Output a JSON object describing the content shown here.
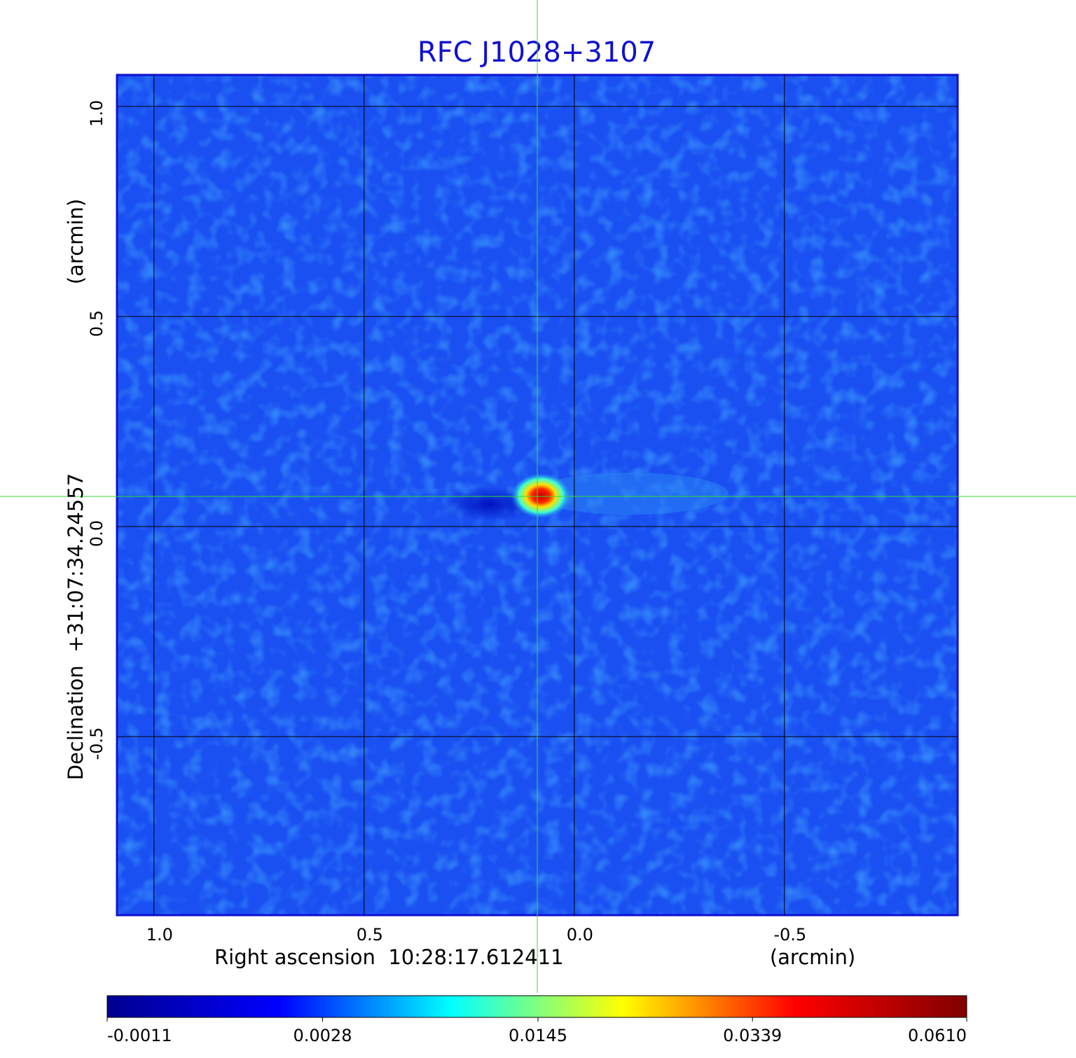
{
  "chart_data": {
    "type": "image",
    "title": "RFC J1028+3107",
    "xlabel": "Right ascension  10:28:17.612411",
    "xunit": "(arcmin)",
    "ylabel": "Declination  +31:07:34.24557",
    "yunit": "(arcmin)",
    "xlim": [
      1.088,
      -0.912
    ],
    "ylim": [
      -0.925,
      1.075
    ],
    "xticks": [
      {
        "value": 1,
        "label": "1.0"
      },
      0.5,
      {
        "value": 0,
        "label": "0.0"
      },
      -0.5
    ],
    "yticks": [
      -0.5,
      {
        "value": 0,
        "label": "0.0"
      },
      0.5,
      {
        "value": 1,
        "label": "1.0"
      }
    ],
    "grid": true,
    "colormap": [
      "#00008f",
      "#0000ff",
      "#00ffff",
      "#ffff00",
      "#ff0000",
      "#800000"
    ],
    "colorbar_scale": "sqrt",
    "colorbar_ticks": [
      -0.0011,
      0.0028,
      0.0145,
      0.0339,
      {
        "value": 0.061,
        "label": "0.0610"
      }
    ]
  }
}
